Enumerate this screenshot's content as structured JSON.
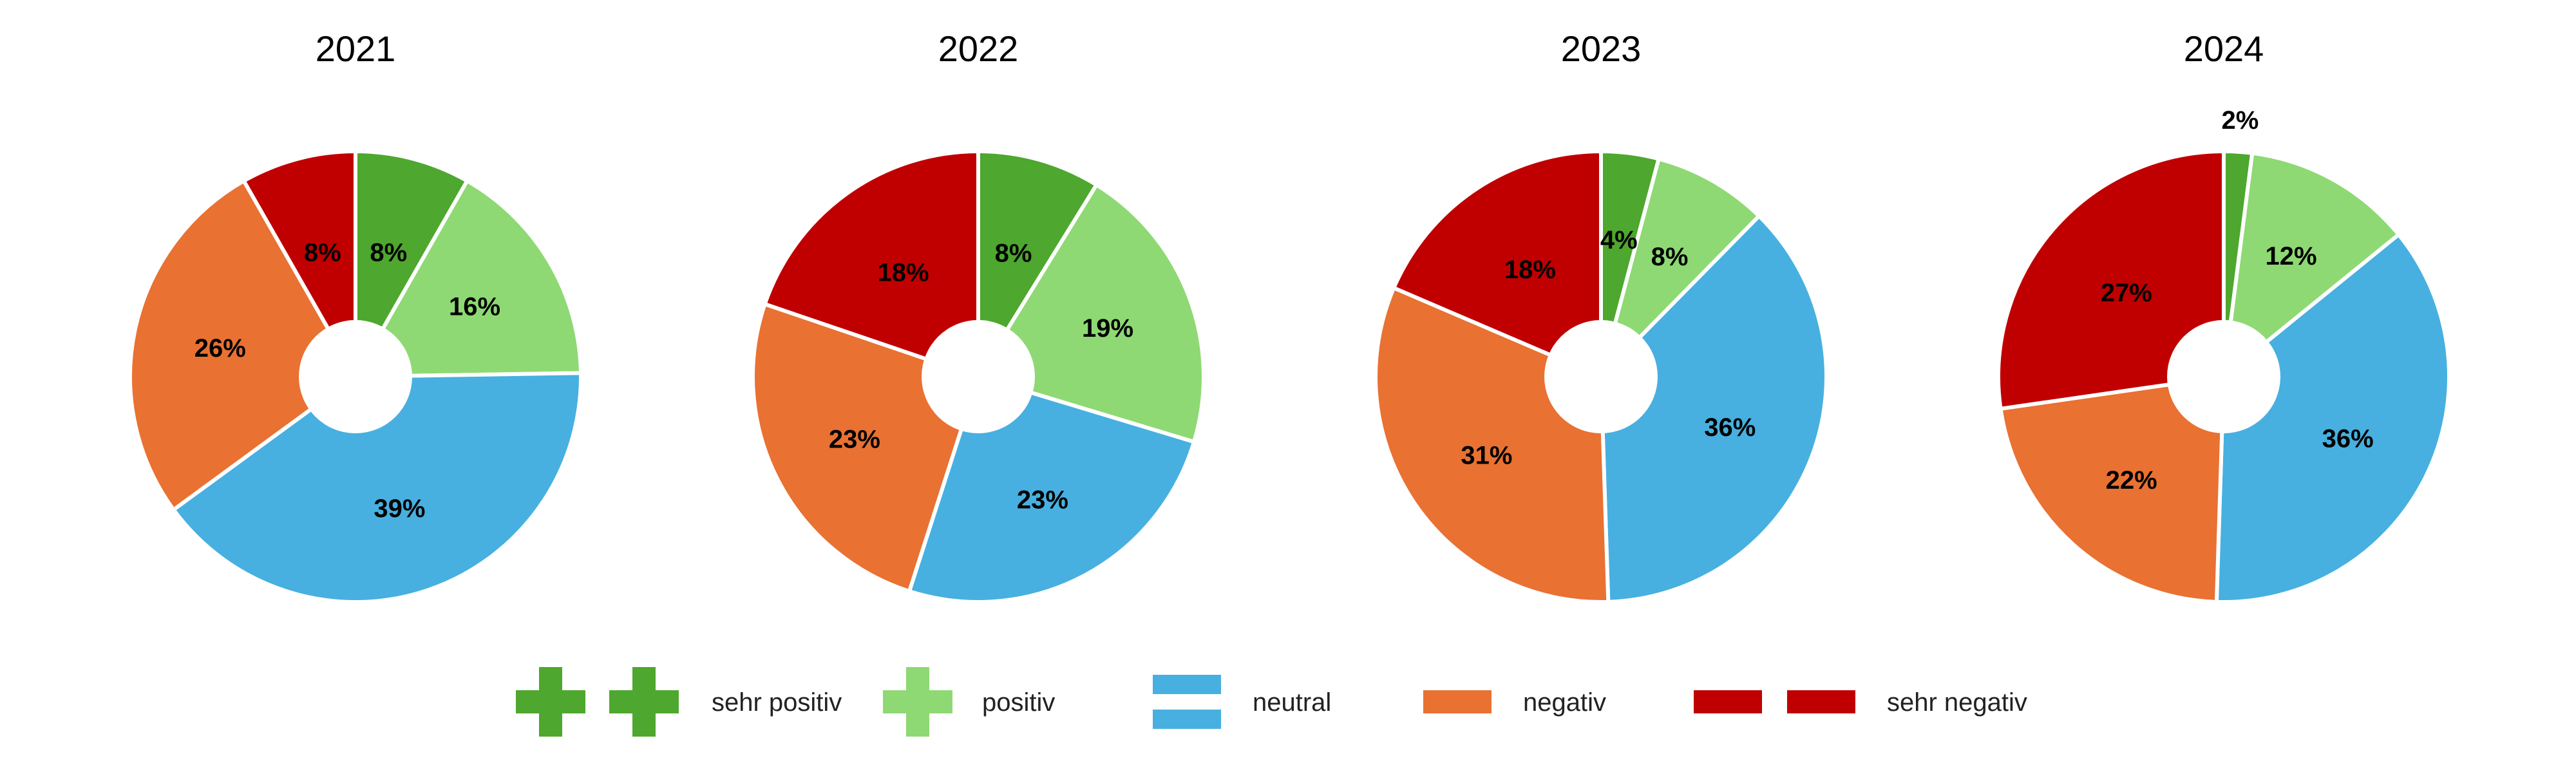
{
  "colors": {
    "sehr_positiv": "#4EA72E",
    "positiv": "#8ED973",
    "neutral": "#47B0E0",
    "negativ": "#E97132",
    "sehr_negativ": "#C00000",
    "slice_border": "#ffffff"
  },
  "chart_data": [
    {
      "type": "pie",
      "title": "2021",
      "categories": [
        "sehr positiv",
        "positiv",
        "neutral",
        "negativ",
        "sehr negativ"
      ],
      "values": [
        8,
        16,
        39,
        26,
        8
      ],
      "labels": [
        "8%",
        "16%",
        "39%",
        "26%",
        "8%"
      ]
    },
    {
      "type": "pie",
      "title": "2022",
      "categories": [
        "sehr positiv",
        "positiv",
        "neutral",
        "negativ",
        "sehr negativ"
      ],
      "values": [
        8,
        19,
        23,
        23,
        18
      ],
      "labels": [
        "8%",
        "19%",
        "23%",
        "23%",
        "18%"
      ]
    },
    {
      "type": "pie",
      "title": "2023",
      "categories": [
        "sehr positiv",
        "positiv",
        "neutral",
        "negativ",
        "sehr negativ"
      ],
      "values": [
        4,
        8,
        36,
        31,
        18
      ],
      "labels": [
        "4%",
        "8%",
        "36%",
        "31%",
        "18%"
      ]
    },
    {
      "type": "pie",
      "title": "2024",
      "categories": [
        "sehr positiv",
        "positiv",
        "neutral",
        "negativ",
        "sehr negativ"
      ],
      "values": [
        2,
        12,
        36,
        22,
        27
      ],
      "labels": [
        "2%",
        "12%",
        "36%",
        "22%",
        "27%"
      ]
    }
  ],
  "legend": [
    {
      "label": "sehr positiv",
      "color_key": "sehr_positiv",
      "icon": "double-plus-icon"
    },
    {
      "label": "positiv",
      "color_key": "positiv",
      "icon": "plus-icon"
    },
    {
      "label": "neutral",
      "color_key": "neutral",
      "icon": "equals-icon"
    },
    {
      "label": "negativ",
      "color_key": "negativ",
      "icon": "minus-icon"
    },
    {
      "label": "sehr negativ",
      "color_key": "sehr_negativ",
      "icon": "double-minus-icon"
    }
  ]
}
